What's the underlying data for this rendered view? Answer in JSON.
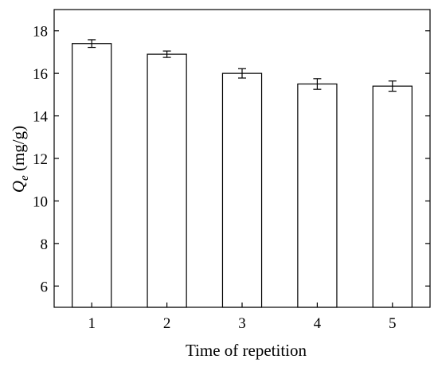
{
  "chart_data": {
    "type": "bar",
    "categories": [
      "1",
      "2",
      "3",
      "4",
      "5"
    ],
    "values": [
      17.4,
      16.9,
      16.0,
      15.5,
      15.4
    ],
    "errors": [
      0.18,
      0.15,
      0.22,
      0.25,
      0.24
    ],
    "title": "",
    "xlabel": "Time of repetition",
    "ylabel_main": "Q",
    "ylabel_sub": "e",
    "ylabel_unit": " (mg/g)",
    "ylim": [
      5,
      19
    ],
    "yticks": [
      6,
      8,
      10,
      12,
      14,
      16,
      18
    ],
    "grid": false,
    "bar_fill": "#ffffff",
    "bar_stroke": "#000000"
  }
}
